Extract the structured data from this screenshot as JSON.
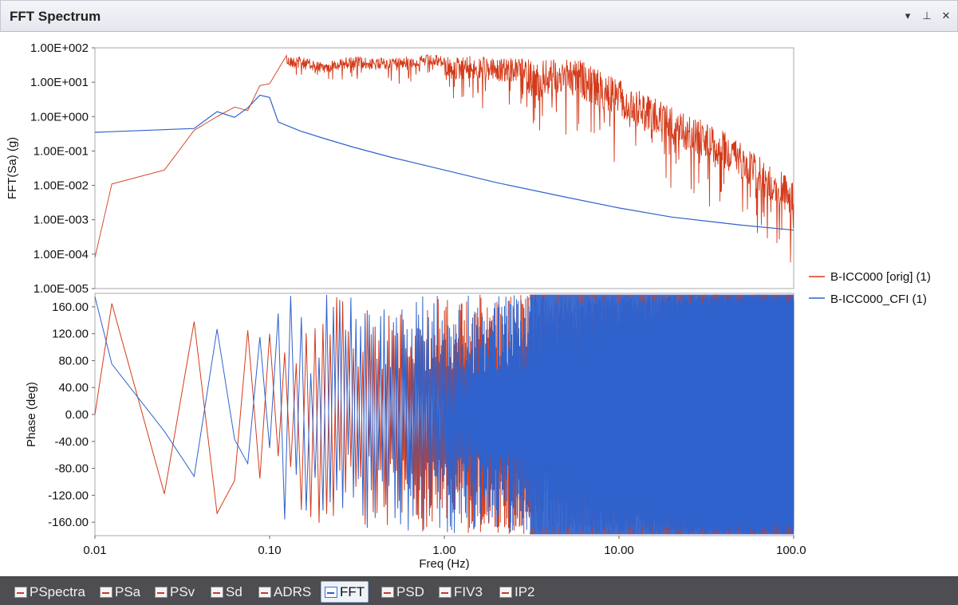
{
  "window": {
    "title": "FFT Spectrum",
    "buttons": {
      "dropdown": "▾",
      "pin": "⊥",
      "close": "✕"
    }
  },
  "colors": {
    "orig": "#d43b1b",
    "cfi": "#2f62cc",
    "frame": "#a9a9a9"
  },
  "icons": {
    "dropdown": "chevron-down-icon",
    "pin": "pin-icon",
    "close": "close-icon",
    "tab_chart": "chart-icon"
  },
  "chart_data": [
    {
      "type": "line",
      "title": "",
      "xlabel": "",
      "ylabel": "FFT(Sa) (g)",
      "xscale": "log",
      "yscale": "log",
      "xlim": [
        0.01,
        100
      ],
      "ylim": [
        1e-05,
        100
      ],
      "yticks": [
        "1.00E-005",
        "1.00E-004",
        "1.00E-003",
        "1.00E-002",
        "1.00E-001",
        "1.00E+000",
        "1.00E+001",
        "1.00E+002"
      ],
      "grid": false,
      "series": [
        {
          "name": "B-ICC000 [orig]  (1)",
          "color_key": "orig",
          "points": [
            [
              0.01,
              8e-05
            ],
            [
              0.0125,
              0.011
            ],
            [
              0.025,
              0.028
            ],
            [
              0.037,
              0.4
            ],
            [
              0.05,
              1.0
            ],
            [
              0.063,
              1.9
            ],
            [
              0.075,
              1.5
            ],
            [
              0.088,
              8
            ],
            [
              0.1,
              9
            ],
            [
              0.125,
              60
            ],
            [
              0.15,
              55
            ],
            [
              0.2,
              40
            ],
            [
              0.3,
              60
            ],
            [
              0.4,
              48
            ],
            [
              0.5,
              55
            ],
            [
              0.7,
              60
            ],
            [
              0.9,
              65
            ],
            [
              1.0,
              55
            ],
            [
              1.5,
              60
            ],
            [
              2.0,
              50
            ],
            [
              3.0,
              50
            ],
            [
              4.0,
              45
            ],
            [
              5.0,
              55
            ],
            [
              6.0,
              45
            ],
            [
              8.0,
              20
            ],
            [
              10,
              12
            ],
            [
              15,
              4
            ],
            [
              20,
              2
            ],
            [
              30,
              0.8
            ],
            [
              50,
              0.2
            ],
            [
              70,
              0.05
            ],
            [
              100,
              0.015
            ]
          ]
        },
        {
          "name": "B-ICC000_CFI (1)",
          "color_key": "cfi",
          "points": [
            [
              0.01,
              0.35
            ],
            [
              0.037,
              0.45
            ],
            [
              0.05,
              1.4
            ],
            [
              0.063,
              0.95
            ],
            [
              0.075,
              1.8
            ],
            [
              0.088,
              4.2
            ],
            [
              0.1,
              3.6
            ],
            [
              0.112,
              0.7
            ],
            [
              0.15,
              0.38
            ],
            [
              0.2,
              0.24
            ],
            [
              0.3,
              0.13
            ],
            [
              0.5,
              0.065
            ],
            [
              1.0,
              0.028
            ],
            [
              2.0,
              0.012
            ],
            [
              5.0,
              0.0045
            ],
            [
              10,
              0.0022
            ],
            [
              20,
              0.0012
            ],
            [
              50,
              0.0007
            ],
            [
              100,
              0.0005
            ]
          ]
        }
      ]
    },
    {
      "type": "line",
      "title": "",
      "xlabel": "Freq (Hz)",
      "ylabel": "Phase (deg)",
      "xscale": "log",
      "xlim": [
        0.01,
        100
      ],
      "ylim": [
        -180,
        180
      ],
      "xticks": [
        "0.01",
        "0.10",
        "1.00",
        "10.00",
        "100.0"
      ],
      "yticks": [
        "-160.00",
        "-120.00",
        "-80.00",
        "-40.00",
        "0.00",
        "40.00",
        "80.00",
        "120.00",
        "160.00"
      ],
      "grid": false,
      "series": [
        {
          "name": "B-ICC000 [orig]  (1)",
          "color_key": "orig",
          "description": "alternating phase, wrapping between -180 and 180 with increasing density",
          "points": [
            [
              0.01,
              0
            ],
            [
              0.0125,
              165
            ],
            [
              0.025,
              -118
            ],
            [
              0.037,
              138
            ],
            [
              0.05,
              -147
            ],
            [
              0.063,
              -98
            ],
            [
              0.075,
              125
            ],
            [
              0.088,
              -95
            ],
            [
              0.1,
              120
            ],
            [
              0.112,
              -62
            ]
          ]
        },
        {
          "name": "B-ICC000_CFI (1)",
          "color_key": "cfi",
          "description": "alternating phase, wrapping between -180 and 180 with increasing density",
          "points": [
            [
              0.01,
              175
            ],
            [
              0.0125,
              75
            ],
            [
              0.025,
              -25
            ],
            [
              0.037,
              -92
            ],
            [
              0.05,
              127
            ],
            [
              0.063,
              -37
            ],
            [
              0.075,
              -73
            ],
            [
              0.088,
              115
            ],
            [
              0.1,
              -50
            ],
            [
              0.112,
              150
            ]
          ]
        }
      ]
    }
  ],
  "legend": {
    "placement": "right",
    "entries": [
      "B-ICC000 [orig]  (1)",
      "B-ICC000_CFI (1)"
    ]
  },
  "tabs": [
    {
      "label": "PSpectra",
      "active": false
    },
    {
      "label": "PSa",
      "active": false
    },
    {
      "label": "PSv",
      "active": false
    },
    {
      "label": "Sd",
      "active": false
    },
    {
      "label": "ADRS",
      "active": false
    },
    {
      "label": "FFT",
      "active": true
    },
    {
      "label": "PSD",
      "active": false
    },
    {
      "label": "FIV3",
      "active": false
    },
    {
      "label": "IP2",
      "active": false
    }
  ]
}
